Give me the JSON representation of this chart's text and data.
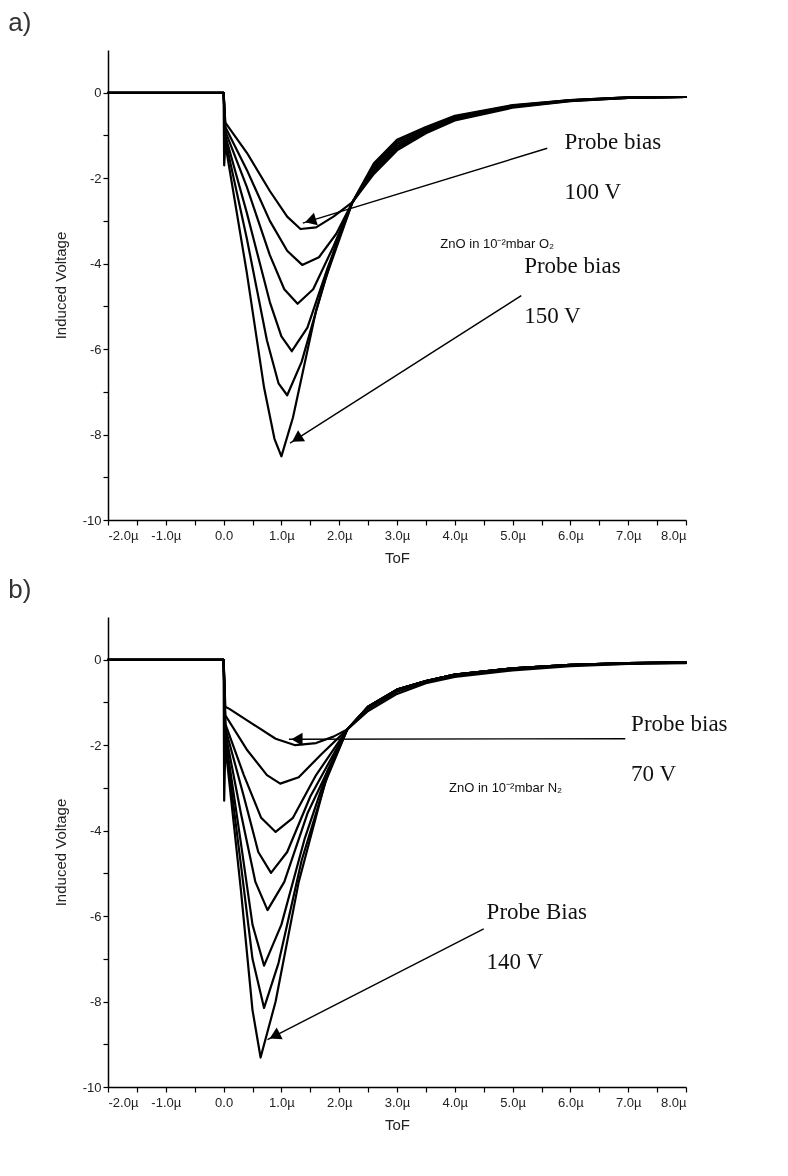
{
  "chart_data": [
    {
      "type": "line",
      "title": "a)",
      "xlabel": "ToF",
      "ylabel": "Induced Voltage",
      "xlim": [
        -2,
        8
      ],
      "ylim": [
        -10,
        1
      ],
      "xticks": [
        {
          "value": -2,
          "label": "-2.0µ"
        },
        {
          "value": -1.5,
          "label": null
        },
        {
          "value": -1,
          "label": "-1.0µ"
        },
        {
          "value": -0.5,
          "label": null
        },
        {
          "value": 0,
          "label": "0.0"
        },
        {
          "value": 0.5,
          "label": null
        },
        {
          "value": 1,
          "label": "1.0µ"
        },
        {
          "value": 1.5,
          "label": null
        },
        {
          "value": 2,
          "label": "2.0µ"
        },
        {
          "value": 2.5,
          "label": null
        },
        {
          "value": 3,
          "label": "3.0µ"
        },
        {
          "value": 3.5,
          "label": null
        },
        {
          "value": 4,
          "label": "4.0µ"
        },
        {
          "value": 4.5,
          "label": null
        },
        {
          "value": 5,
          "label": "5.0µ"
        },
        {
          "value": 5.5,
          "label": null
        },
        {
          "value": 6,
          "label": "6.0µ"
        },
        {
          "value": 6.5,
          "label": null
        },
        {
          "value": 7,
          "label": "7.0µ"
        },
        {
          "value": 7.5,
          "label": null
        },
        {
          "value": 8,
          "label": "8.0µ"
        }
      ],
      "yticks": [
        -10,
        {
          "value": -9,
          "label": null
        },
        -8,
        {
          "value": -7,
          "label": null
        },
        -6,
        {
          "value": -5,
          "label": null
        },
        -4,
        {
          "value": -3,
          "label": null
        },
        -2,
        {
          "value": -1,
          "label": null
        },
        0
      ],
      "series": [
        {
          "color": "#000000",
          "x": [
            -2,
            -1,
            0,
            0.03,
            0.4,
            0.8,
            1.1,
            1.33,
            1.6,
            1.9,
            2.23,
            2.6,
            3,
            3.5,
            4,
            5,
            6,
            7,
            8
          ],
          "values": [
            0,
            0,
            0,
            -0.7,
            -1.4,
            -2.3,
            -2.9,
            -3.19,
            -3.15,
            -2.9,
            -2.56,
            -1.9,
            -1.35,
            -0.95,
            -0.65,
            -0.35,
            -0.2,
            -0.12,
            -0.1
          ]
        },
        {
          "color": "#000000",
          "x": [
            -2,
            -1,
            0,
            0.03,
            0.4,
            0.8,
            1.1,
            1.36,
            1.65,
            1.95,
            2.23,
            2.6,
            3,
            3.5,
            4,
            5,
            6,
            7,
            8
          ],
          "values": [
            0,
            0,
            0,
            -0.8,
            -1.8,
            -3.0,
            -3.7,
            -4.03,
            -3.85,
            -3.3,
            -2.56,
            -1.85,
            -1.3,
            -0.92,
            -0.62,
            -0.33,
            -0.19,
            -0.12,
            -0.1
          ]
        },
        {
          "color": "#000000",
          "x": [
            -2,
            -1,
            0,
            0.03,
            0.4,
            0.8,
            1.05,
            1.28,
            1.55,
            1.9,
            2.23,
            2.6,
            3,
            3.5,
            4,
            5,
            6,
            7,
            8
          ],
          "values": [
            0,
            0,
            0,
            -0.9,
            -2.2,
            -3.8,
            -4.6,
            -4.94,
            -4.6,
            -3.6,
            -2.56,
            -1.8,
            -1.25,
            -0.9,
            -0.6,
            -0.32,
            -0.18,
            -0.12,
            -0.1
          ]
        },
        {
          "color": "#000000",
          "x": [
            -2,
            -1,
            0,
            0.03,
            0.4,
            0.8,
            1.0,
            1.18,
            1.45,
            1.8,
            2.23,
            2.6,
            3,
            3.5,
            4,
            5,
            6,
            7,
            8
          ],
          "values": [
            0,
            0,
            0,
            -1.0,
            -2.8,
            -4.9,
            -5.7,
            -6.05,
            -5.5,
            -4.1,
            -2.56,
            -1.75,
            -1.2,
            -0.87,
            -0.58,
            -0.31,
            -0.18,
            -0.11,
            -0.1
          ]
        },
        {
          "color": "#000000",
          "x": [
            -2,
            -1,
            0,
            0.03,
            0.4,
            0.75,
            0.95,
            1.1,
            1.35,
            1.75,
            2.23,
            2.6,
            3,
            3.5,
            4,
            5,
            6,
            7,
            8
          ],
          "values": [
            0,
            0,
            0,
            -1.1,
            -3.4,
            -5.8,
            -6.8,
            -7.08,
            -6.3,
            -4.4,
            -2.56,
            -1.7,
            -1.15,
            -0.84,
            -0.56,
            -0.3,
            -0.17,
            -0.11,
            -0.1
          ]
        },
        {
          "color": "#000000",
          "x": [
            -2,
            -1,
            0,
            0.01,
            0.03,
            0.4,
            0.7,
            0.88,
            1.0,
            1.2,
            1.6,
            2.0,
            2.23,
            2.6,
            3,
            3.5,
            4,
            5,
            6,
            7,
            8
          ],
          "values": [
            0,
            0,
            0,
            -1.7,
            -1.2,
            -4.2,
            -6.9,
            -8.1,
            -8.51,
            -7.6,
            -5.1,
            -3.3,
            -2.56,
            -1.65,
            -1.1,
            -0.8,
            -0.54,
            -0.29,
            -0.17,
            -0.11,
            -0.1
          ]
        }
      ],
      "annotations": [
        "ZnO in 10⁻²mbar O₂",
        {
          "text": "Probe bias\n100 V",
          "x": 1.37,
          "y": -3.05
        },
        {
          "text": "Probe bias\n150 V",
          "x": 1.15,
          "y": -8.2
        }
      ]
    },
    {
      "type": "line",
      "title": "b)",
      "xlabel": "ToF",
      "ylabel": "Induced Voltage",
      "xlim": [
        -2,
        8
      ],
      "ylim": [
        -10,
        1
      ],
      "xticks": [
        {
          "value": -2,
          "label": "-2.0µ"
        },
        {
          "value": -1.5,
          "label": null
        },
        {
          "value": -1,
          "label": "-1.0µ"
        },
        {
          "value": -0.5,
          "label": null
        },
        {
          "value": 0,
          "label": "0.0"
        },
        {
          "value": 0.5,
          "label": null
        },
        {
          "value": 1,
          "label": "1.0µ"
        },
        {
          "value": 1.5,
          "label": null
        },
        {
          "value": 2,
          "label": "2.0µ"
        },
        {
          "value": 2.5,
          "label": null
        },
        {
          "value": 3,
          "label": "3.0µ"
        },
        {
          "value": 3.5,
          "label": null
        },
        {
          "value": 4,
          "label": "4.0µ"
        },
        {
          "value": 4.5,
          "label": null
        },
        {
          "value": 5,
          "label": "5.0µ"
        },
        {
          "value": 5.5,
          "label": null
        },
        {
          "value": 6,
          "label": "6.0µ"
        },
        {
          "value": 6.5,
          "label": null
        },
        {
          "value": 7,
          "label": "7.0µ"
        },
        {
          "value": 7.5,
          "label": null
        },
        {
          "value": 8,
          "label": "8.0µ"
        }
      ],
      "yticks": [
        -10,
        {
          "value": -9,
          "label": null
        },
        -8,
        {
          "value": -7,
          "label": null
        },
        -6,
        {
          "value": -5,
          "label": null
        },
        -4,
        {
          "value": -3,
          "label": null
        },
        -2,
        {
          "value": -1,
          "label": null
        },
        0
      ],
      "series": [
        {
          "color": "#000000",
          "x": [
            -2,
            -1,
            0,
            0.03,
            0.1,
            0.5,
            0.9,
            1.24,
            1.6,
            1.9,
            2.14,
            2.5,
            3,
            3.5,
            4,
            5,
            6,
            7,
            8
          ],
          "values": [
            0,
            0,
            0,
            -1.1,
            -1.15,
            -1.5,
            -1.85,
            -2.0,
            -1.95,
            -1.8,
            -1.63,
            -1.2,
            -0.8,
            -0.55,
            -0.4,
            -0.25,
            -0.15,
            -0.1,
            -0.08
          ]
        },
        {
          "color": "#000000",
          "x": [
            -2,
            -1,
            0,
            0.03,
            0.4,
            0.75,
            0.98,
            1.3,
            1.7,
            2.14,
            2.5,
            3,
            3.5,
            4,
            5,
            6,
            7,
            8
          ],
          "values": [
            0,
            0,
            0,
            -1.3,
            -2.1,
            -2.7,
            -2.9,
            -2.75,
            -2.2,
            -1.63,
            -1.15,
            -0.75,
            -0.52,
            -0.37,
            -0.22,
            -0.13,
            -0.09,
            -0.07
          ]
        },
        {
          "color": "#000000",
          "x": [
            -2,
            -1,
            0,
            0.03,
            0.35,
            0.65,
            0.9,
            1.2,
            1.6,
            2.14,
            2.5,
            3,
            3.5,
            4,
            5,
            6,
            7,
            8
          ],
          "values": [
            0,
            0,
            0,
            -1.5,
            -2.7,
            -3.7,
            -4.03,
            -3.7,
            -2.7,
            -1.63,
            -1.1,
            -0.7,
            -0.5,
            -0.35,
            -0.2,
            -0.12,
            -0.08,
            -0.06
          ]
        },
        {
          "color": "#000000",
          "x": [
            -2,
            -1,
            0,
            0.03,
            0.35,
            0.6,
            0.82,
            1.1,
            1.5,
            2.14,
            2.5,
            3,
            3.5,
            4,
            5,
            6,
            7,
            8
          ],
          "values": [
            0,
            0,
            0,
            -1.6,
            -3.2,
            -4.5,
            -4.99,
            -4.5,
            -3.2,
            -1.63,
            -1.1,
            -0.7,
            -0.5,
            -0.35,
            -0.2,
            -0.12,
            -0.08,
            -0.06
          ]
        },
        {
          "color": "#000000",
          "x": [
            -2,
            -1,
            0,
            0.03,
            0.3,
            0.55,
            0.76,
            1.05,
            1.45,
            2.14,
            2.5,
            3,
            3.5,
            4,
            5,
            6,
            7,
            8
          ],
          "values": [
            0,
            0,
            0,
            -1.7,
            -3.6,
            -5.2,
            -5.86,
            -5.2,
            -3.6,
            -1.63,
            -1.1,
            -0.7,
            -0.5,
            -0.35,
            -0.2,
            -0.12,
            -0.08,
            -0.06
          ]
        },
        {
          "color": "#000000",
          "x": [
            -2,
            -1,
            0,
            0.03,
            0.3,
            0.5,
            0.7,
            1.0,
            1.4,
            1.8,
            2.14,
            2.5,
            3,
            3.5,
            4,
            5,
            6,
            7,
            8
          ],
          "values": [
            0,
            0,
            0,
            -1.8,
            -4.3,
            -6.2,
            -7.16,
            -6.2,
            -4.2,
            -2.6,
            -1.63,
            -1.1,
            -0.7,
            -0.5,
            -0.35,
            -0.2,
            -0.12,
            -0.08,
            -0.06
          ]
        },
        {
          "color": "#000000",
          "x": [
            -2,
            -1,
            0,
            0.03,
            0.3,
            0.5,
            0.7,
            0.95,
            1.35,
            1.8,
            2.14,
            2.5,
            3,
            3.5,
            4,
            5,
            6,
            7,
            8
          ],
          "values": [
            0,
            0,
            0,
            -1.9,
            -4.8,
            -7.0,
            -8.15,
            -7.1,
            -4.7,
            -2.7,
            -1.63,
            -1.1,
            -0.7,
            -0.5,
            -0.35,
            -0.2,
            -0.12,
            -0.08,
            -0.06
          ]
        },
        {
          "color": "#000000",
          "x": [
            -2,
            -1,
            0,
            0.01,
            0.03,
            0.3,
            0.5,
            0.64,
            0.9,
            1.3,
            1.75,
            2.14,
            2.5,
            3,
            3.5,
            4,
            5,
            6,
            7,
            8
          ],
          "values": [
            0,
            0,
            0,
            -3.3,
            -2.0,
            -5.4,
            -8.2,
            -9.31,
            -8.0,
            -5.2,
            -2.9,
            -1.63,
            -1.1,
            -0.7,
            -0.5,
            -0.35,
            -0.2,
            -0.12,
            -0.08,
            -0.06
          ]
        }
      ],
      "annotations": [
        "ZnO in 10⁻²mbar N₂",
        {
          "text": "Probe bias\n70 V",
          "x": 1.13,
          "y": -1.86
        },
        {
          "text": "Probe Bias\n140 V",
          "x": 0.76,
          "y": -8.89
        }
      ]
    }
  ]
}
